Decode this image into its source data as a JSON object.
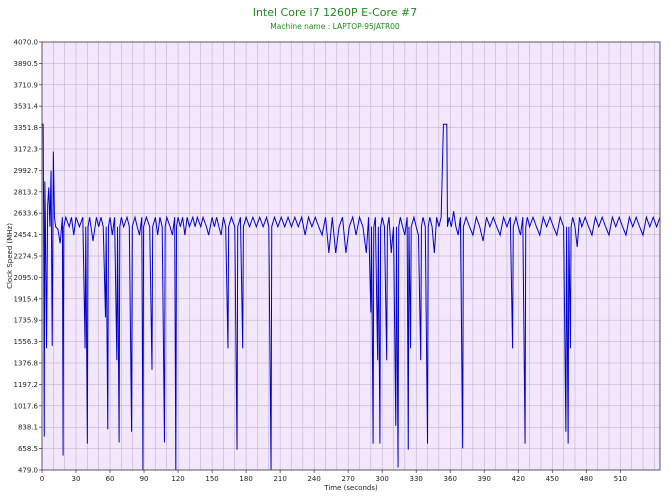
{
  "chart_data": {
    "type": "line",
    "title": "Intel Core i7 1260P E-Core #7",
    "subtitle": "Machine name : LAPTOP-95JATR00",
    "xlabel": "Time (seconds)",
    "ylabel": "Clock Speed (MHz)",
    "xlim": [
      0,
      545
    ],
    "ylim": [
      479.0,
      4070.0
    ],
    "x_ticks": [
      "0",
      "30",
      "60",
      "90",
      "120",
      "150",
      "180",
      "210",
      "240",
      "270",
      "300",
      "330",
      "360",
      "390",
      "420",
      "450",
      "480",
      "510"
    ],
    "y_ticks": [
      "479.0",
      "658.5",
      "838.1",
      "1017.6",
      "1197.2",
      "1376.8",
      "1556.3",
      "1735.9",
      "1915.4",
      "2095.0",
      "2274.5",
      "2454.1",
      "2633.6",
      "2813.2",
      "2992.7",
      "3172.3",
      "3351.8",
      "3531.4",
      "3710.9",
      "3890.5",
      "4070.0"
    ],
    "grid": true,
    "colors": {
      "background": "#f3e8fb",
      "grid": "#b9a6c9",
      "line": "#0000cc",
      "title": "#1e8a1e"
    },
    "series": [
      {
        "name": "",
        "baseline": 2520,
        "points": [
          [
            0,
            3380
          ],
          [
            1,
            3380
          ],
          [
            1.5,
            2500
          ],
          [
            2,
            760
          ],
          [
            2.5,
            2900
          ],
          [
            3,
            2580
          ],
          [
            4,
            1500
          ],
          [
            5,
            2700
          ],
          [
            6,
            2850
          ],
          [
            7,
            2520
          ],
          [
            8,
            2990
          ],
          [
            9,
            1520
          ],
          [
            10,
            3150
          ],
          [
            11,
            2600
          ],
          [
            12,
            2520
          ],
          [
            14,
            2500
          ],
          [
            16,
            2380
          ],
          [
            18,
            2600
          ],
          [
            18.6,
            600
          ],
          [
            19.2,
            2520
          ],
          [
            21,
            2600
          ],
          [
            24,
            2520
          ],
          [
            26,
            2600
          ],
          [
            28,
            2450
          ],
          [
            30,
            2600
          ],
          [
            33,
            2520
          ],
          [
            36,
            2600
          ],
          [
            38,
            1500
          ],
          [
            38.6,
            2520
          ],
          [
            40,
            700
          ],
          [
            40.6,
            2520
          ],
          [
            42,
            2600
          ],
          [
            45,
            2400
          ],
          [
            48,
            2600
          ],
          [
            50,
            2520
          ],
          [
            52,
            2600
          ],
          [
            54,
            2520
          ],
          [
            56,
            1760
          ],
          [
            56.6,
            2520
          ],
          [
            58,
            820
          ],
          [
            58.6,
            2520
          ],
          [
            60,
            2600
          ],
          [
            62,
            2450
          ],
          [
            64,
            2600
          ],
          [
            66,
            1400
          ],
          [
            66.6,
            2520
          ],
          [
            68,
            710
          ],
          [
            68.6,
            2520
          ],
          [
            70,
            2600
          ],
          [
            72,
            2520
          ],
          [
            75,
            2600
          ],
          [
            77,
            2520
          ],
          [
            79,
            800
          ],
          [
            79.6,
            2520
          ],
          [
            82,
            2600
          ],
          [
            84,
            2520
          ],
          [
            86,
            2450
          ],
          [
            88,
            2600
          ],
          [
            89,
            480
          ],
          [
            89.6,
            2520
          ],
          [
            92,
            2600
          ],
          [
            95,
            2520
          ],
          [
            97,
            1320
          ],
          [
            97.6,
            2520
          ],
          [
            100,
            2600
          ],
          [
            102,
            2450
          ],
          [
            104,
            2600
          ],
          [
            106,
            2520
          ],
          [
            108,
            710
          ],
          [
            108.6,
            2520
          ],
          [
            110,
            2600
          ],
          [
            113,
            2520
          ],
          [
            115,
            2450
          ],
          [
            117,
            2600
          ],
          [
            118,
            480
          ],
          [
            118.6,
            2520
          ],
          [
            120,
            2600
          ],
          [
            122,
            2520
          ],
          [
            124,
            2600
          ],
          [
            126,
            2450
          ],
          [
            128,
            2600
          ],
          [
            130,
            2520
          ],
          [
            133,
            2600
          ],
          [
            135,
            2520
          ],
          [
            137,
            2600
          ],
          [
            140,
            2520
          ],
          [
            142,
            2600
          ],
          [
            145,
            2520
          ],
          [
            147,
            2450
          ],
          [
            150,
            2600
          ],
          [
            152,
            2520
          ],
          [
            154,
            2600
          ],
          [
            156,
            2520
          ],
          [
            158,
            2450
          ],
          [
            160,
            2600
          ],
          [
            162,
            2520
          ],
          [
            164,
            1500
          ],
          [
            164.6,
            2520
          ],
          [
            167,
            2600
          ],
          [
            170,
            2520
          ],
          [
            172,
            650
          ],
          [
            172.6,
            2520
          ],
          [
            175,
            2600
          ],
          [
            177,
            1500
          ],
          [
            177.6,
            2520
          ],
          [
            180,
            2600
          ],
          [
            183,
            2520
          ],
          [
            186,
            2600
          ],
          [
            189,
            2520
          ],
          [
            192,
            2600
          ],
          [
            195,
            2520
          ],
          [
            198,
            2600
          ],
          [
            200,
            2520
          ],
          [
            202,
            480
          ],
          [
            202.6,
            2520
          ],
          [
            205,
            2600
          ],
          [
            208,
            2520
          ],
          [
            211,
            2600
          ],
          [
            214,
            2520
          ],
          [
            217,
            2600
          ],
          [
            220,
            2520
          ],
          [
            223,
            2600
          ],
          [
            226,
            2520
          ],
          [
            229,
            2600
          ],
          [
            232,
            2450
          ],
          [
            235,
            2600
          ],
          [
            238,
            2520
          ],
          [
            241,
            2600
          ],
          [
            244,
            2520
          ],
          [
            247,
            2450
          ],
          [
            250,
            2600
          ],
          [
            253,
            2300
          ],
          [
            256,
            2600
          ],
          [
            259,
            2300
          ],
          [
            262,
            2520
          ],
          [
            265,
            2600
          ],
          [
            268,
            2300
          ],
          [
            271,
            2520
          ],
          [
            274,
            2600
          ],
          [
            277,
            2450
          ],
          [
            280,
            2600
          ],
          [
            283,
            2520
          ],
          [
            286,
            2300
          ],
          [
            288,
            2600
          ],
          [
            290,
            1800
          ],
          [
            290.6,
            2520
          ],
          [
            292,
            700
          ],
          [
            292.6,
            2520
          ],
          [
            294,
            2600
          ],
          [
            296,
            1400
          ],
          [
            296.6,
            2520
          ],
          [
            298,
            700
          ],
          [
            298.6,
            2520
          ],
          [
            300,
            2600
          ],
          [
            302,
            2520
          ],
          [
            304,
            1400
          ],
          [
            304.6,
            2520
          ],
          [
            306,
            2600
          ],
          [
            308,
            2300
          ],
          [
            310,
            2520
          ],
          [
            312,
            850
          ],
          [
            312.6,
            2520
          ],
          [
            314,
            500
          ],
          [
            314.6,
            2520
          ],
          [
            316,
            2600
          ],
          [
            318,
            2520
          ],
          [
            320,
            2450
          ],
          [
            322,
            2600
          ],
          [
            323,
            650
          ],
          [
            323.6,
            2520
          ],
          [
            325,
            1500
          ],
          [
            325.6,
            2520
          ],
          [
            328,
            2600
          ],
          [
            330,
            2520
          ],
          [
            332,
            2450
          ],
          [
            334,
            1400
          ],
          [
            334.6,
            2520
          ],
          [
            336,
            2600
          ],
          [
            338,
            2520
          ],
          [
            340,
            700
          ],
          [
            340.6,
            2520
          ],
          [
            342,
            2600
          ],
          [
            344,
            2520
          ],
          [
            346,
            2300
          ],
          [
            348,
            2600
          ],
          [
            350,
            2520
          ],
          [
            352,
            2600
          ],
          [
            354,
            3380
          ],
          [
            357,
            3380
          ],
          [
            357.6,
            2520
          ],
          [
            359,
            2600
          ],
          [
            361,
            2520
          ],
          [
            363,
            2650
          ],
          [
            365,
            2520
          ],
          [
            367,
            2450
          ],
          [
            369,
            2600
          ],
          [
            371,
            660
          ],
          [
            371.6,
            2520
          ],
          [
            374,
            2600
          ],
          [
            377,
            2520
          ],
          [
            380,
            2450
          ],
          [
            383,
            2600
          ],
          [
            386,
            2520
          ],
          [
            389,
            2400
          ],
          [
            392,
            2600
          ],
          [
            395,
            2520
          ],
          [
            398,
            2600
          ],
          [
            401,
            2520
          ],
          [
            404,
            2450
          ],
          [
            407,
            2600
          ],
          [
            410,
            2520
          ],
          [
            413,
            2600
          ],
          [
            415,
            1500
          ],
          [
            415.6,
            2520
          ],
          [
            418,
            2600
          ],
          [
            420,
            2520
          ],
          [
            422,
            2450
          ],
          [
            424,
            2600
          ],
          [
            426,
            700
          ],
          [
            426.6,
            2520
          ],
          [
            428,
            2600
          ],
          [
            430,
            2520
          ],
          [
            433,
            2600
          ],
          [
            436,
            2520
          ],
          [
            439,
            2450
          ],
          [
            442,
            2600
          ],
          [
            445,
            2520
          ],
          [
            448,
            2600
          ],
          [
            451,
            2520
          ],
          [
            454,
            2450
          ],
          [
            457,
            2600
          ],
          [
            460,
            2520
          ],
          [
            462,
            800
          ],
          [
            462.6,
            2520
          ],
          [
            464,
            700
          ],
          [
            464.6,
            2520
          ],
          [
            466,
            1500
          ],
          [
            466.6,
            2520
          ],
          [
            468,
            2600
          ],
          [
            470,
            2520
          ],
          [
            472,
            2350
          ],
          [
            474,
            2600
          ],
          [
            476,
            2520
          ],
          [
            479,
            2600
          ],
          [
            482,
            2520
          ],
          [
            485,
            2450
          ],
          [
            488,
            2600
          ],
          [
            491,
            2520
          ],
          [
            494,
            2600
          ],
          [
            497,
            2520
          ],
          [
            500,
            2450
          ],
          [
            503,
            2600
          ],
          [
            506,
            2520
          ],
          [
            509,
            2600
          ],
          [
            512,
            2520
          ],
          [
            515,
            2450
          ],
          [
            518,
            2600
          ],
          [
            521,
            2520
          ],
          [
            524,
            2600
          ],
          [
            527,
            2520
          ],
          [
            530,
            2450
          ],
          [
            533,
            2600
          ],
          [
            536,
            2520
          ],
          [
            539,
            2600
          ],
          [
            542,
            2520
          ],
          [
            545,
            2600
          ]
        ]
      }
    ]
  }
}
